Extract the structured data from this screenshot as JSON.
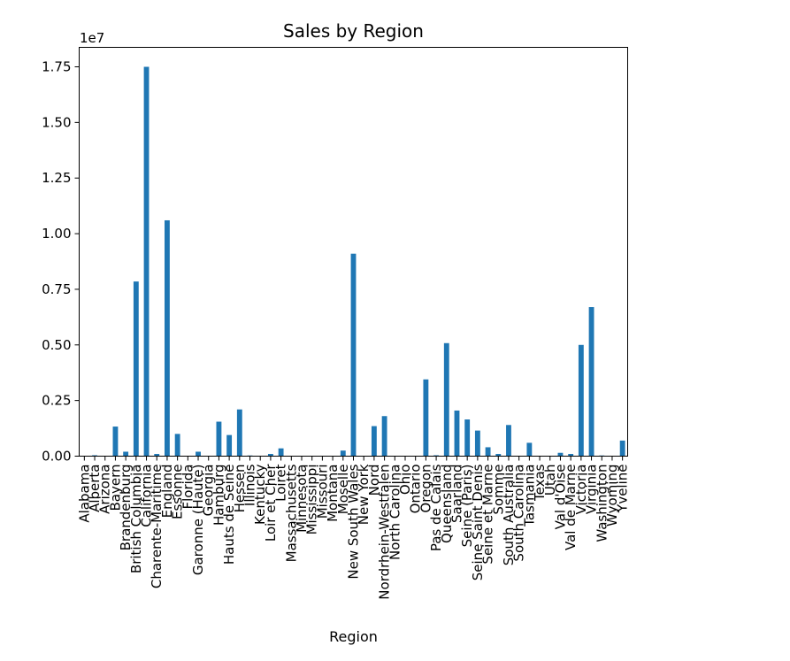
{
  "chart_data": {
    "type": "bar",
    "title": "Sales by Region",
    "xlabel": "Region",
    "ylabel": "",
    "y_offset_label": "1e7",
    "ylim": [
      0,
      18375000
    ],
    "yticks": [
      0.0,
      0.25,
      0.5,
      0.75,
      1.0,
      1.25,
      1.5,
      1.75
    ],
    "ytick_labels": [
      "0.00",
      "0.25",
      "0.50",
      "0.75",
      "1.00",
      "1.25",
      "1.50",
      "1.75"
    ],
    "y_scale": 10000000,
    "bar_color": "#1f77b4",
    "categories": [
      "Alabama",
      "Alberta",
      "Arizona",
      "Bayern",
      "Brandenburg",
      "British Columbia",
      "California",
      "Charente-Maritime",
      "England",
      "Essonne",
      "Florida",
      "Garonne (Haute)",
      "Georgia",
      "Hamburg",
      "Hauts de Seine",
      "Hessen",
      "Illinois",
      "Kentucky",
      "Loir et Cher",
      "Loiret",
      "Massachusetts",
      "Minnesota",
      "Mississippi",
      "Missouri",
      "Montana",
      "Moselle",
      "New South Wales",
      "New York",
      "Nord",
      "Nordrhein-Westfalen",
      "North Carolina",
      "Ohio",
      "Ontario",
      "Oregon",
      "Pas de Calais",
      "Queensland",
      "Saarland",
      "Seine (Paris)",
      "Seine Saint Denis",
      "Seine et Marne",
      "Somme",
      "South Australia",
      "South Carolina",
      "Tasmania",
      "Texas",
      "Utah",
      "Val d'Oise",
      "Val de Marne",
      "Victoria",
      "Virginia",
      "Washington",
      "Wyoming",
      "Yveline"
    ],
    "values": [
      5000,
      40000,
      5000,
      1330000,
      200000,
      7850000,
      17500000,
      100000,
      10600000,
      1000000,
      5000,
      200000,
      5000,
      1550000,
      950000,
      2100000,
      30000,
      5000,
      100000,
      350000,
      5000,
      5000,
      5000,
      5000,
      5000,
      250000,
      9100000,
      5000,
      1350000,
      1800000,
      5000,
      5000,
      5000,
      3450000,
      40000,
      5080000,
      2050000,
      1650000,
      1150000,
      400000,
      100000,
      1400000,
      5000,
      600000,
      5000,
      5000,
      150000,
      100000,
      5000000,
      6700000,
      30000,
      5000,
      700000
    ]
  }
}
